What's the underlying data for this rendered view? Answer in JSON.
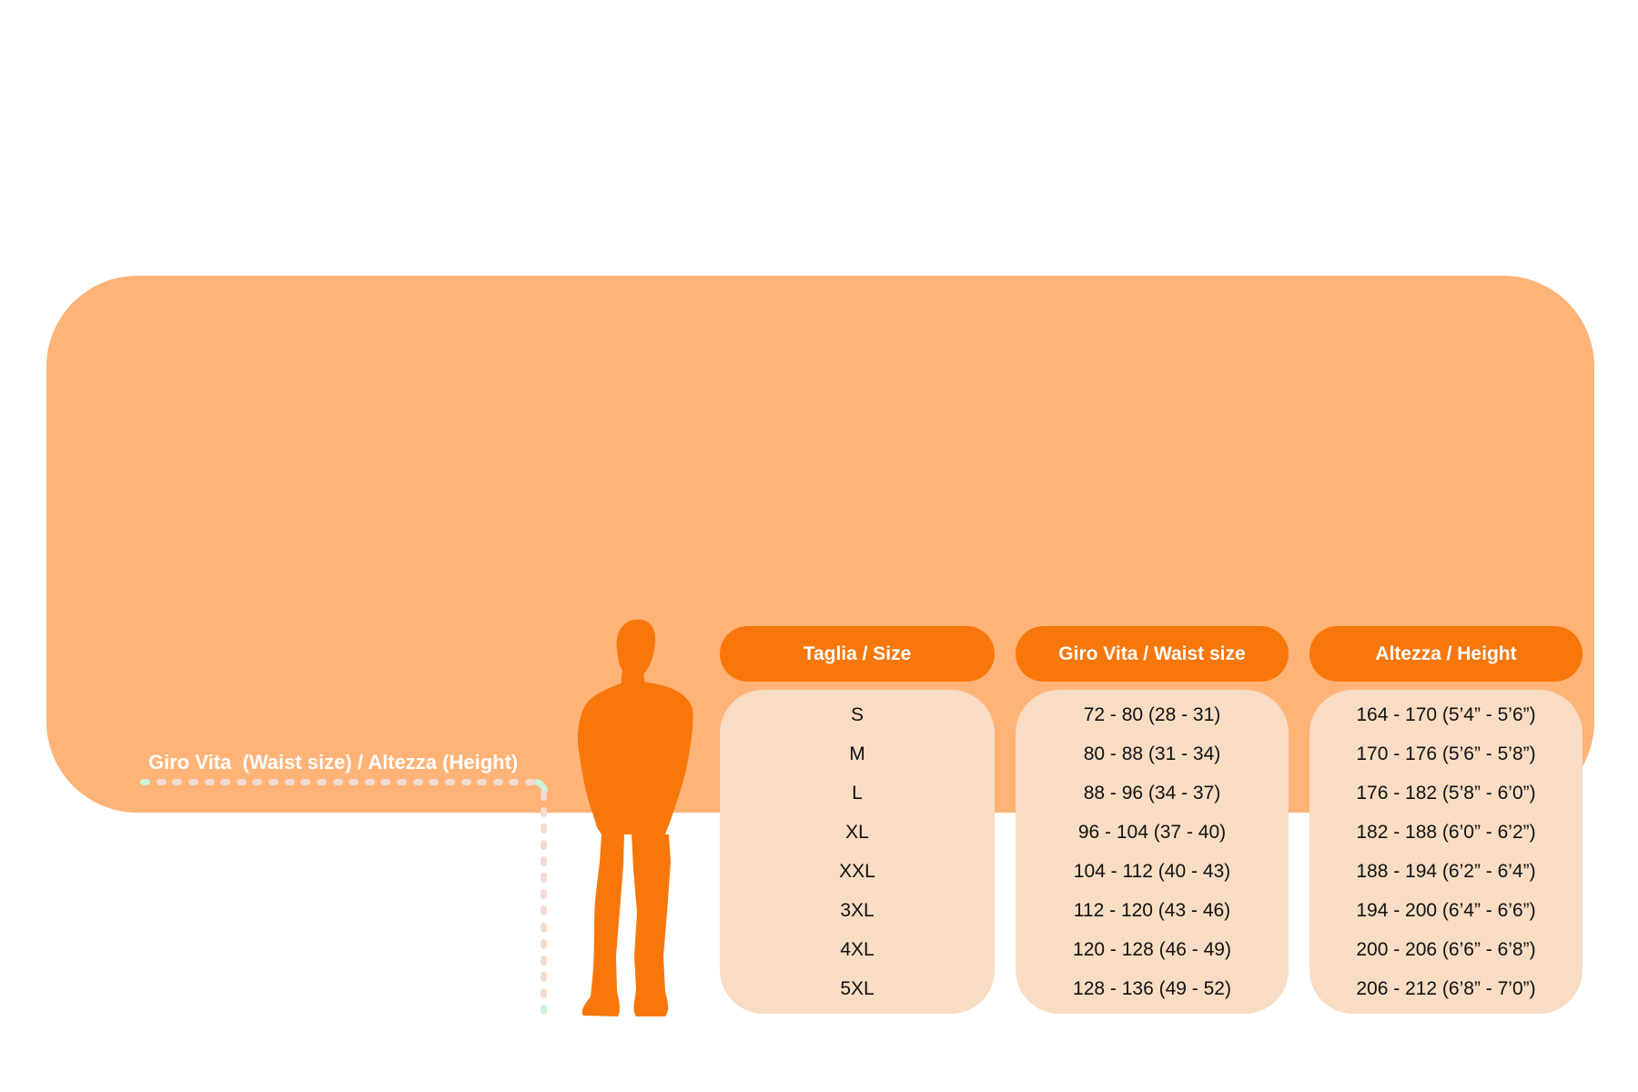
{
  "figure": {
    "measure_label": "Giro Vita  (Waist size) / Altezza (Height)"
  },
  "size_chart": {
    "columns": [
      {
        "id": "size",
        "header": "Taglia / Size"
      },
      {
        "id": "waist",
        "header": "Giro Vita / Waist size"
      },
      {
        "id": "height",
        "header": "Altezza / Height"
      }
    ],
    "rows": [
      {
        "size": "S",
        "waist": "72 - 80 (28 - 31)",
        "height": "164 - 170 (5’4” - 5’6”)"
      },
      {
        "size": "M",
        "waist": "80 - 88 (31 - 34)",
        "height": "170 - 176 (5’6” - 5’8”)"
      },
      {
        "size": "L",
        "waist": "88 - 96 (34 - 37)",
        "height": "176 - 182 (5’8” - 6’0”)"
      },
      {
        "size": "XL",
        "waist": "96 - 104 (37 - 40)",
        "height": "182 - 188 (6’0” - 6’2”)"
      },
      {
        "size": "XXL",
        "waist": "104 - 112 (40 - 43)",
        "height": "188 - 194 (6’2” - 6’4”)"
      },
      {
        "size": "3XL",
        "waist": "112 - 120 (43 - 46)",
        "height": "194 - 200 (6’4” - 6’6”)"
      },
      {
        "size": "4XL",
        "waist": "120 - 128 (46 - 49)",
        "height": "200 - 206 (6’6” - 6’8”)"
      },
      {
        "size": "5XL",
        "waist": "128 - 136 (49 - 52)",
        "height": "206 - 212 (6’8” - 7’0”)"
      }
    ]
  },
  "icons": {
    "man_silhouette": "man-silhouette",
    "waist_line": "waist-dashed-line",
    "height_line": "height-dashed-line"
  },
  "colors": {
    "page_bg": "#ffffff",
    "card_bg": "#FFB377",
    "accent": "#F8770B",
    "panel_bg": "#F8DCC3",
    "dash": "#F2DCD2",
    "mint": "#C9F3DB",
    "text_dark": "#111111",
    "text_light": "#ffffff"
  },
  "dashes": {
    "horizontal_count": 25,
    "vertical_count": 14
  }
}
